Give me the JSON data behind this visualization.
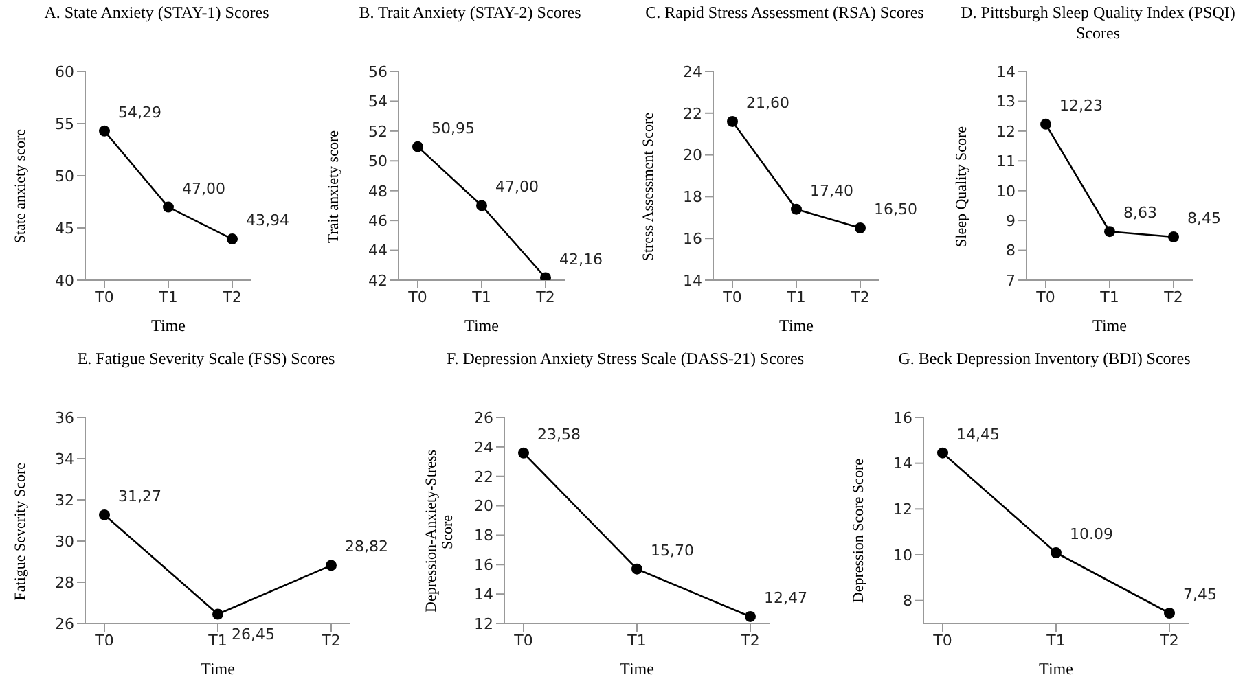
{
  "chart_data": [
    {
      "type": "line",
      "title": "A. State Anxiety (STAY-1) Scores",
      "xlabel": "Time",
      "ylabel": "State anxiety score",
      "categories": [
        "T0",
        "T1",
        "T2"
      ],
      "values": [
        54.29,
        47.0,
        43.94
      ],
      "value_labels": [
        "54,29",
        "47,00",
        "43,94"
      ],
      "color": "#000000",
      "marker": "circle",
      "ylim": [
        40,
        60
      ],
      "yticks": [
        40,
        45,
        50,
        55,
        60
      ]
    },
    {
      "type": "line",
      "title": "B. Trait Anxiety (STAY-2) Scores",
      "xlabel": "Time",
      "ylabel": "Trait anxiety score",
      "categories": [
        "T0",
        "T1",
        "T2"
      ],
      "values": [
        50.95,
        47.0,
        42.16
      ],
      "value_labels": [
        "50,95",
        "47,00",
        "42,16"
      ],
      "color": "#000000",
      "marker": "circle",
      "ylim": [
        42,
        56
      ],
      "yticks": [
        42,
        44,
        46,
        48,
        50,
        52,
        54,
        56
      ]
    },
    {
      "type": "line",
      "title": "C. Rapid Stress Assessment (RSA) Scores",
      "xlabel": "Time",
      "ylabel": "Stress Assessment Score",
      "categories": [
        "T0",
        "T1",
        "T2"
      ],
      "values": [
        21.6,
        17.4,
        16.5
      ],
      "value_labels": [
        "21,60",
        "17,40",
        "16,50"
      ],
      "color": "#000000",
      "marker": "circle",
      "ylim": [
        14,
        24
      ],
      "yticks": [
        14,
        16,
        18,
        20,
        22,
        24
      ]
    },
    {
      "type": "line",
      "title": "D. Pittsburgh Sleep Quality Index (PSQI) Scores",
      "xlabel": "Time",
      "ylabel": "Sleep Quality Score",
      "categories": [
        "T0",
        "T1",
        "T2"
      ],
      "values": [
        12.23,
        8.63,
        8.45
      ],
      "value_labels": [
        "12,23",
        "8,63",
        "8,45"
      ],
      "color": "#000000",
      "marker": "circle",
      "ylim": [
        7,
        14
      ],
      "yticks": [
        7,
        8,
        9,
        10,
        11,
        12,
        13,
        14
      ]
    },
    {
      "type": "line",
      "title": "E. Fatigue Severity Scale (FSS) Scores",
      "xlabel": "Time",
      "ylabel": "Fatigue Severity Score",
      "categories": [
        "T0",
        "T1",
        "T2"
      ],
      "values": [
        31.27,
        26.45,
        28.82
      ],
      "value_labels": [
        "31,27",
        "26,45",
        "28,82"
      ],
      "color": "#000000",
      "marker": "circle",
      "ylim": [
        26,
        36
      ],
      "yticks": [
        26,
        28,
        30,
        32,
        34,
        36
      ]
    },
    {
      "type": "line",
      "title": "F. Depression Anxiety Stress Scale (DASS-21) Scores",
      "xlabel": "Time",
      "ylabel": "Depression-Anxiety-Stress Score",
      "categories": [
        "T0",
        "T1",
        "T2"
      ],
      "values": [
        23.58,
        15.7,
        12.47
      ],
      "value_labels": [
        "23,58",
        "15,70",
        "12,47"
      ],
      "color": "#000000",
      "marker": "circle",
      "ylim": [
        12,
        26
      ],
      "yticks": [
        12,
        14,
        16,
        18,
        20,
        22,
        24,
        26
      ]
    },
    {
      "type": "line",
      "title": "G. Beck Depression Inventory (BDI) Scores",
      "xlabel": "Time",
      "ylabel": "Depression Score Score",
      "categories": [
        "T0",
        "T1",
        "T2"
      ],
      "values": [
        14.45,
        10.09,
        7.45
      ],
      "value_labels": [
        "14,45",
        "10.09",
        "7,45"
      ],
      "color": "#000000",
      "marker": "circle",
      "ylim": [
        7,
        16
      ],
      "yticks": [
        8,
        10,
        12,
        14,
        16
      ]
    }
  ]
}
